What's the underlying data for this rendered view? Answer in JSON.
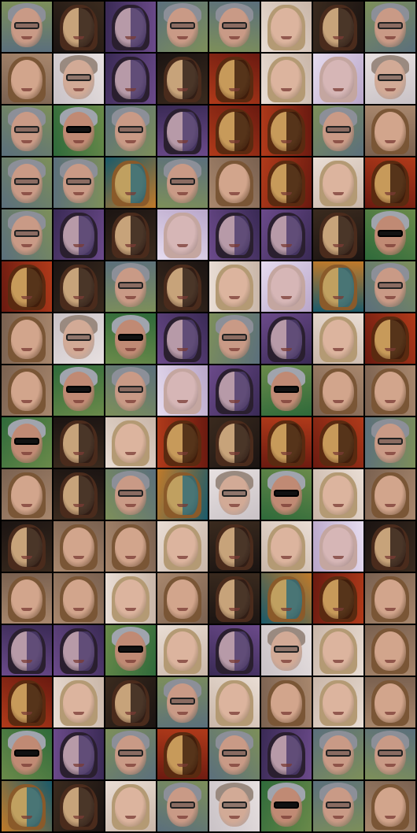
{
  "grid": {
    "columns": 8,
    "rows": 16
  },
  "palettes": {
    "man_glasses": {
      "bg": "#5b6f7c",
      "bg2": "#7d8f5a",
      "skin": "#c99a86",
      "hair": "#8c8f98",
      "glasses": "light"
    },
    "man_sunglasses": {
      "bg": "#2f6a3a",
      "bg2": "#6a8a4a",
      "skin": "#c08a74",
      "hair": "#a0a4ad",
      "glasses": "dark"
    },
    "woman_brown": {
      "bg": "#7a6150",
      "bg2": "#a8876d",
      "skin": "#d2a58c",
      "hair": "#7a5636",
      "glasses": "none",
      "long": true
    },
    "woman_blonde": {
      "bg": "#c9b6a8",
      "bg2": "#e9ddd4",
      "skin": "#dcb49e",
      "hair": "#b49a74",
      "glasses": "none",
      "long": true
    },
    "split_dark": {
      "bg": "#1b1412",
      "bg2": "#3a2a1e",
      "skin": "#c7a37a",
      "hair": "#4a2b1c",
      "glasses": "none",
      "shade": "#2a1a14",
      "long": true
    },
    "split_purple": {
      "bg": "#3a2a55",
      "bg2": "#6b4a8a",
      "skin": "#b79aa8",
      "hair": "#2a1f2f",
      "glasses": "none",
      "shade": "#4b3a6b",
      "long": true
    },
    "split_red": {
      "bg": "#6a1a10",
      "bg2": "#b03a1a",
      "skin": "#c79a5a",
      "hair": "#5a2a10",
      "glasses": "none",
      "shade": "#3a1a0a",
      "long": true
    },
    "teal_glow": {
      "bg": "#1a5a6a",
      "bg2": "#c07a2a",
      "skin": "#c0a060",
      "hair": "#8a5a2a",
      "glasses": "none",
      "shade": "#2a6a7a",
      "long": true
    },
    "lilac_woman": {
      "bg": "#b9a6c9",
      "bg2": "#e6dcef",
      "skin": "#d6b6b6",
      "hair": "#c4a6a0",
      "glasses": "none",
      "long": true
    },
    "man_light": {
      "bg": "#c9c2c6",
      "bg2": "#e7e0e0",
      "skin": "#d2aa96",
      "hair": "#9a8a80",
      "glasses": "light"
    }
  },
  "tiles": [
    "man_glasses",
    "split_dark",
    "split_purple",
    "man_glasses",
    "man_glasses",
    "woman_blonde",
    "split_dark",
    "man_glasses",
    "woman_brown",
    "man_light",
    "split_purple",
    "split_dark",
    "split_red",
    "woman_blonde",
    "lilac_woman",
    "man_light",
    "man_glasses",
    "man_sunglasses",
    "man_glasses",
    "split_purple",
    "split_red",
    "split_red",
    "man_glasses",
    "woman_brown",
    "man_glasses",
    "man_glasses",
    "teal_glow",
    "man_glasses",
    "woman_brown",
    "split_red",
    "woman_blonde",
    "split_red",
    "man_glasses",
    "split_purple",
    "split_dark",
    "lilac_woman",
    "split_purple",
    "split_purple",
    "split_dark",
    "man_sunglasses",
    "split_red",
    "split_dark",
    "man_glasses",
    "split_dark",
    "woman_blonde",
    "lilac_woman",
    "teal_glow",
    "man_glasses",
    "woman_brown",
    "man_light",
    "man_sunglasses",
    "split_purple",
    "man_glasses",
    "split_purple",
    "woman_blonde",
    "split_red",
    "woman_brown",
    "man_sunglasses",
    "man_glasses",
    "lilac_woman",
    "split_purple",
    "man_sunglasses",
    "woman_brown",
    "woman_brown",
    "man_sunglasses",
    "split_dark",
    "woman_blonde",
    "split_red",
    "split_dark",
    "split_red",
    "split_red",
    "man_glasses",
    "woman_brown",
    "split_dark",
    "man_glasses",
    "teal_glow",
    "man_light",
    "man_sunglasses",
    "woman_blonde",
    "woman_brown",
    "split_dark",
    "woman_brown",
    "woman_brown",
    "woman_blonde",
    "split_dark",
    "woman_blonde",
    "lilac_woman",
    "split_dark",
    "woman_brown",
    "woman_brown",
    "woman_blonde",
    "woman_brown",
    "split_dark",
    "teal_glow",
    "split_red",
    "woman_brown",
    "split_purple",
    "split_purple",
    "man_sunglasses",
    "woman_blonde",
    "split_purple",
    "man_light",
    "woman_blonde",
    "woman_brown",
    "split_red",
    "woman_blonde",
    "split_dark",
    "man_glasses",
    "woman_blonde",
    "woman_brown",
    "woman_blonde",
    "woman_brown",
    "man_sunglasses",
    "split_purple",
    "man_glasses",
    "split_red",
    "man_glasses",
    "split_purple",
    "man_glasses",
    "man_glasses",
    "teal_glow",
    "split_dark",
    "woman_blonde",
    "man_glasses",
    "man_light",
    "man_sunglasses",
    "man_glasses",
    "woman_brown"
  ]
}
